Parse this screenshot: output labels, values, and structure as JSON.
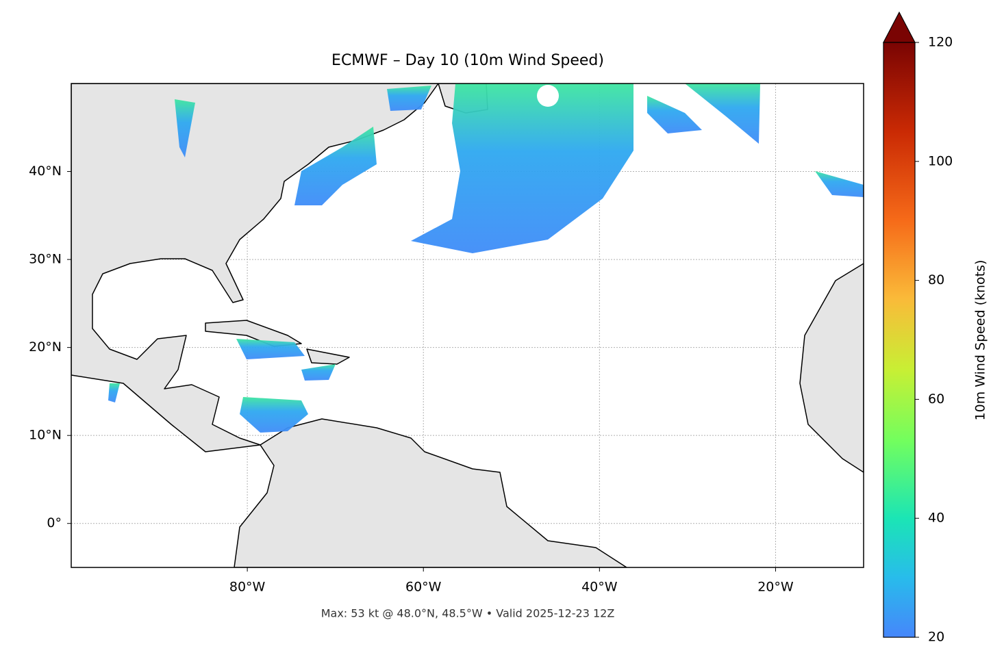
{
  "map": {
    "title": "ECMWF – Day 10 (10m Wind Speed)",
    "xlim": [
      -100,
      -10
    ],
    "ylim": [
      -5,
      50
    ],
    "xticks": [
      {
        "value": -80,
        "label": "80°W"
      },
      {
        "value": -60,
        "label": "60°W"
      },
      {
        "value": -40,
        "label": "40°W"
      },
      {
        "value": -20,
        "label": "20°W"
      }
    ],
    "yticks": [
      {
        "value": 0,
        "label": "0°"
      },
      {
        "value": 10,
        "label": "10°N"
      },
      {
        "value": 20,
        "label": "20°N"
      },
      {
        "value": 30,
        "label": "30°N"
      },
      {
        "value": 40,
        "label": "40°N"
      }
    ],
    "grid": true,
    "footer": "Max: 53 kt @ 48.0°N, 48.5°W • Valid 2025-12-23 12Z"
  },
  "colorbar": {
    "label": "10m Wind Speed (knots)",
    "lim": [
      20,
      120
    ],
    "ticks": [
      20,
      40,
      60,
      80,
      100,
      120
    ],
    "extend": "max"
  }
}
